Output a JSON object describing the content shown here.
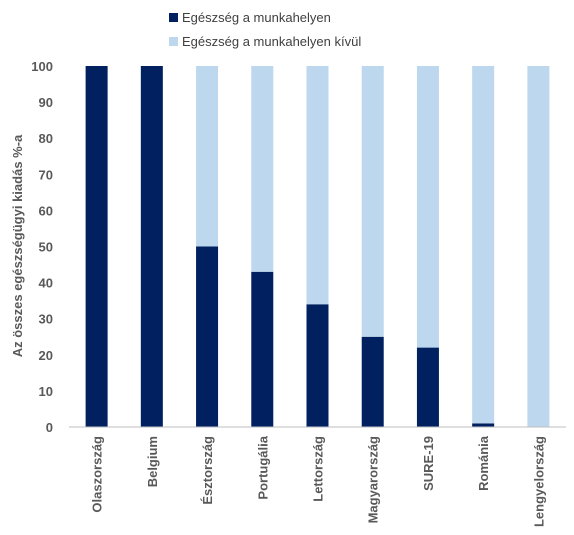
{
  "chart_data": {
    "type": "bar",
    "stacked": true,
    "categories": [
      "Olaszország",
      "Belgium",
      "Észtország",
      "Portugália",
      "Lettország",
      "Magyarország",
      "SURE-19",
      "Románia",
      "Lengyelország"
    ],
    "series": [
      {
        "name": "Egészség a munkahelyen",
        "color": "#002060",
        "values": [
          100,
          100,
          50,
          43,
          34,
          25,
          22,
          1,
          0
        ]
      },
      {
        "name": "Egészség a munkahelyen kívül",
        "color": "#bdd7ee",
        "values": [
          0,
          0,
          50,
          57,
          66,
          75,
          78,
          99,
          100
        ]
      }
    ],
    "ylabel": "Az összes egészségügyi kiadás %-a",
    "xlabel": "",
    "ylim": [
      0,
      100
    ],
    "yticks": [
      0,
      10,
      20,
      30,
      40,
      50,
      60,
      70,
      80,
      90,
      100
    ],
    "legend_position": "top-center",
    "grid": false
  }
}
